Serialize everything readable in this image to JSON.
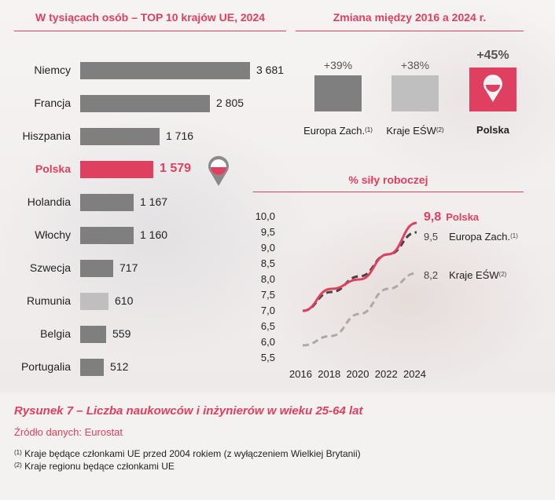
{
  "left_panel": {
    "title": "W tysiącach osób – TOP 10 krajów UE, 2024"
  },
  "right_top_panel": {
    "title": "Zmiana między 2016 a 2024 r.",
    "items": [
      {
        "pct": "+39%",
        "name": "Europa Zach.",
        "fn": "(1)",
        "color": "#7f7f7f"
      },
      {
        "pct": "+38%",
        "name": "Kraje EŚW",
        "fn": "(2)",
        "color": "#bfbfbf"
      },
      {
        "pct": "+45%",
        "name": "Polska",
        "fn": "",
        "color": "#e0405f"
      }
    ]
  },
  "right_bottom_panel": {
    "title": "% siły roboczej"
  },
  "caption": "Rysunek 7 – Liczba naukowców i inżynierów w wieku 25-64 lat",
  "source": "Źródło danych: Eurostat",
  "footnotes": [
    {
      "mark": "(1)",
      "text": "Kraje będące członkami UE przed 2004 rokiem (z wyłączeniem Wielkiej Brytanii)"
    },
    {
      "mark": "(2)",
      "text": "Kraje regionu będące członkami UE"
    }
  ],
  "colors": {
    "accent": "#e0405f",
    "dark_gray": "#7f7f7f",
    "light_gray": "#bfbfbf"
  },
  "chart_data": [
    {
      "type": "bar",
      "orientation": "horizontal",
      "title": "W tysiącach osób – TOP 10 krajów UE, 2024",
      "categories": [
        "Niemcy",
        "Francja",
        "Hiszpania",
        "Polska",
        "Holandia",
        "Włochy",
        "Szwecja",
        "Rumunia",
        "Belgia",
        "Portugalia"
      ],
      "values": [
        3681,
        2805,
        1716,
        1579,
        1167,
        1160,
        717,
        610,
        559,
        512
      ],
      "value_labels": [
        "3 681",
        "2 805",
        "1 716",
        "1 579",
        "1 167",
        "1 160",
        "717",
        "610",
        "559",
        "512"
      ],
      "highlight": "Polska"
    },
    {
      "type": "line",
      "title": "% siły roboczej",
      "x": [
        2016,
        2018,
        2020,
        2022,
        2024
      ],
      "xticks": [
        "2016",
        "2018",
        "2020",
        "2022",
        "2024"
      ],
      "yticks": [
        "10,0",
        "9,5",
        "9,0",
        "8,5",
        "8,0",
        "7,5",
        "7,0",
        "6,5",
        "6,0",
        "5,5"
      ],
      "ylim": [
        5.5,
        10.0
      ],
      "series": [
        {
          "name": "Polska",
          "values": [
            7.0,
            7.7,
            8.0,
            8.8,
            9.8
          ],
          "end_label": "9,8",
          "color": "#e0405f",
          "style": "solid"
        },
        {
          "name": "Europa Zach.",
          "fn": "(1)",
          "values": [
            7.0,
            7.6,
            8.1,
            8.8,
            9.5
          ],
          "end_label": "9,5",
          "color": "#444444",
          "style": "dashed"
        },
        {
          "name": "Kraje EŚW",
          "fn": "(2)",
          "values": [
            5.9,
            6.2,
            6.9,
            7.7,
            8.2
          ],
          "end_label": "8,2",
          "color": "#aaaaaa",
          "style": "dashed"
        }
      ]
    }
  ]
}
